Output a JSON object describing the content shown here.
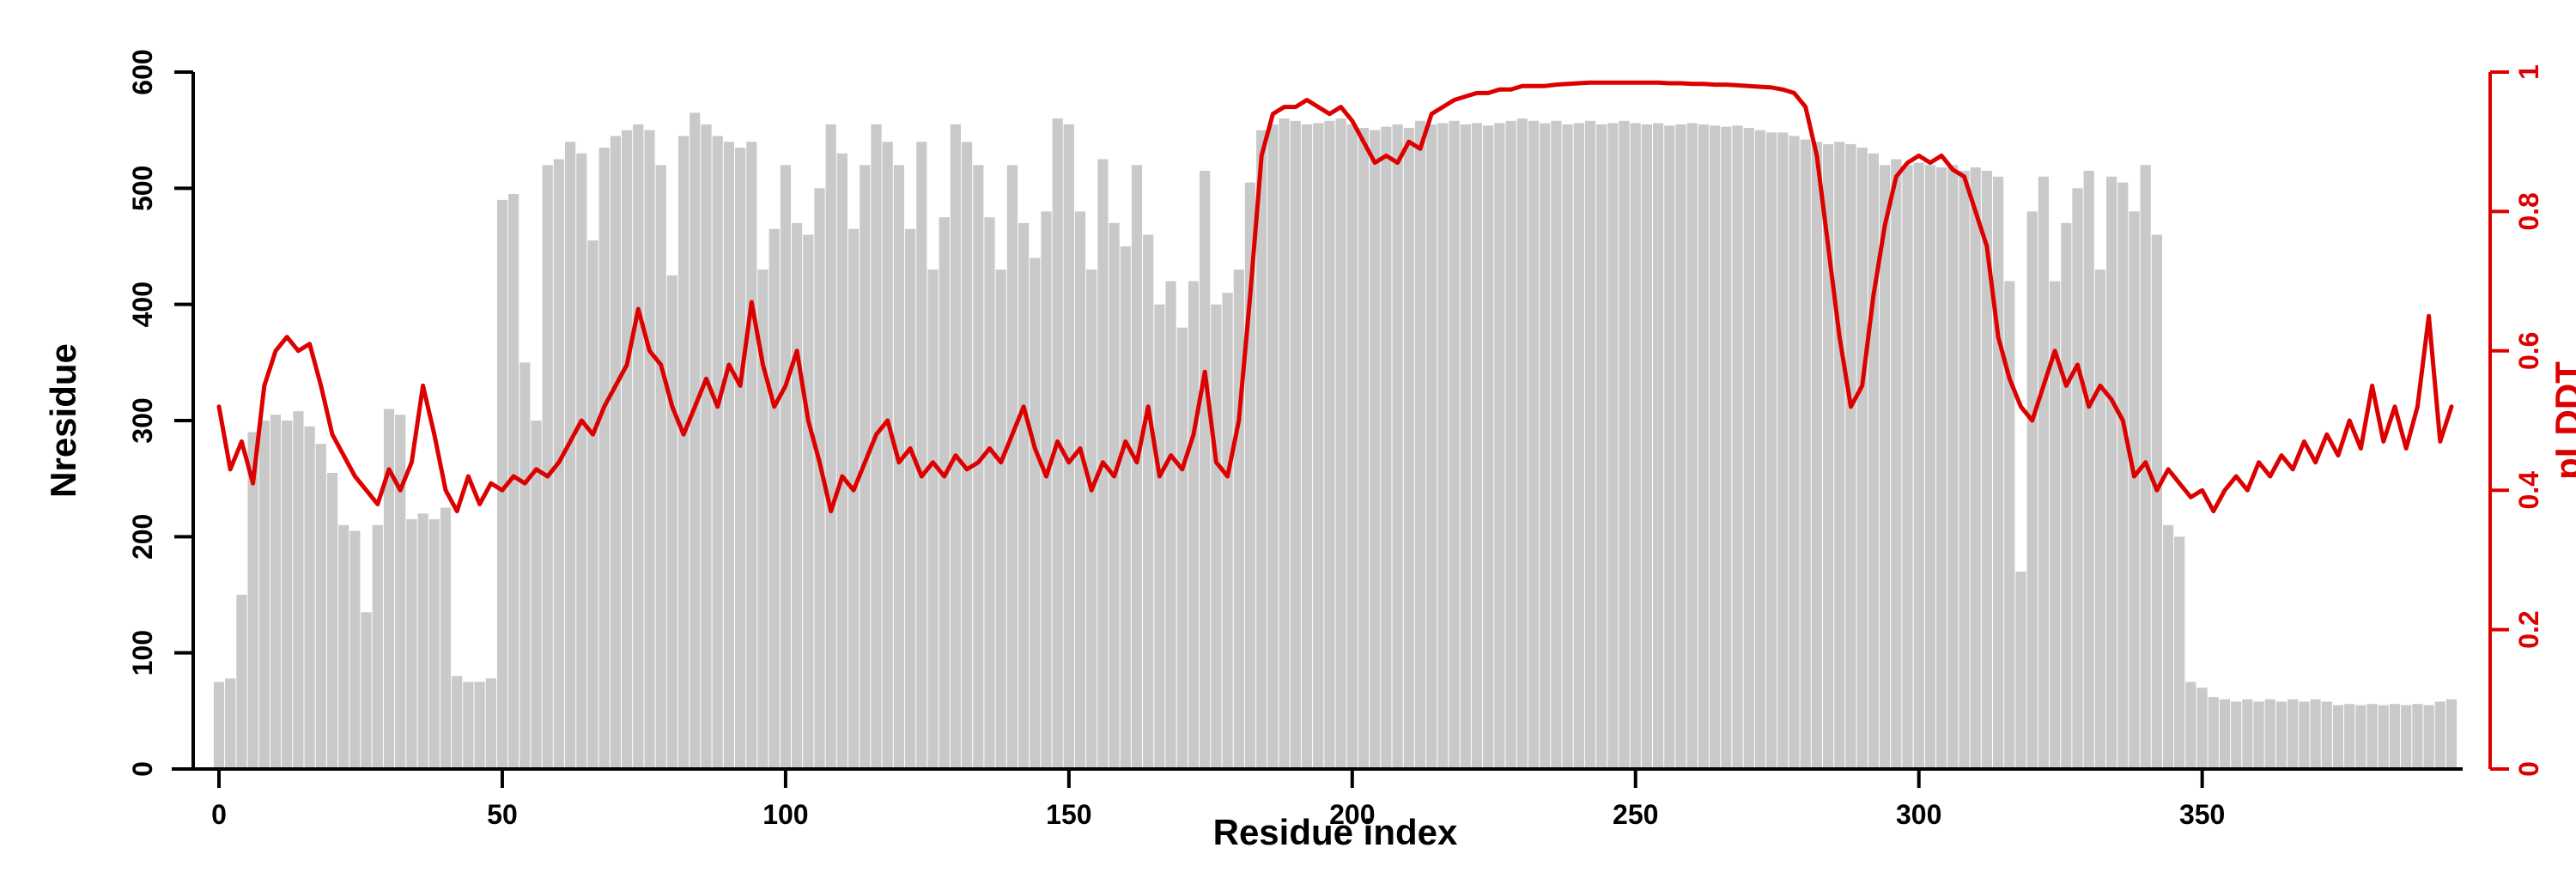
{
  "page": {
    "background": "#ffffff"
  },
  "chart_data": {
    "type": "bar",
    "subtype": "dual-axis-bar-and-line",
    "title": "",
    "xlabel": "Residue index",
    "ylabel_left": "Nresidue",
    "ylabel_right": "pLDDT",
    "xlim": [
      0,
      395
    ],
    "ylim_left": [
      0,
      600
    ],
    "ylim_right": [
      0,
      1
    ],
    "x_ticks": [
      0,
      50,
      100,
      150,
      200,
      250,
      300,
      350
    ],
    "y_ticks_left": [
      0,
      100,
      200,
      300,
      400,
      500,
      600
    ],
    "y_ticks_right": [
      0,
      0.2,
      0.4,
      0.6,
      0.8,
      1
    ],
    "x_start": 0,
    "x_step": 2,
    "grid": false,
    "legend": false,
    "colors": {
      "bar": "#c9c9c9",
      "line": "#dc0000",
      "axis": "#000000",
      "right_axis": "#dc0000"
    },
    "series": [
      {
        "name": "Nresidue",
        "type": "bar",
        "axis": "left",
        "values": [
          75,
          78,
          150,
          290,
          300,
          305,
          300,
          308,
          295,
          280,
          255,
          210,
          205,
          135,
          210,
          310,
          305,
          215,
          220,
          215,
          225,
          80,
          75,
          75,
          78,
          490,
          495,
          350,
          300,
          520,
          525,
          540,
          530,
          455,
          535,
          545,
          550,
          555,
          550,
          520,
          425,
          545,
          565,
          555,
          545,
          540,
          535,
          540,
          430,
          465,
          520,
          470,
          460,
          500,
          555,
          530,
          465,
          520,
          555,
          540,
          520,
          465,
          540,
          430,
          475,
          555,
          540,
          520,
          475,
          430,
          520,
          470,
          440,
          480,
          560,
          555,
          480,
          430,
          525,
          470,
          450,
          520,
          460,
          400,
          420,
          380,
          420,
          515,
          400,
          410,
          430,
          505,
          550,
          555,
          560,
          558,
          555,
          556,
          558,
          560,
          555,
          552,
          550,
          553,
          555,
          552,
          558,
          555,
          556,
          558,
          555,
          556,
          554,
          556,
          558,
          560,
          558,
          556,
          558,
          555,
          556,
          558,
          555,
          556,
          558,
          556,
          555,
          556,
          554,
          555,
          556,
          555,
          554,
          553,
          554,
          552,
          550,
          548,
          548,
          545,
          542,
          540,
          538,
          540,
          538,
          535,
          530,
          520,
          525,
          520,
          522,
          520,
          518,
          520,
          515,
          518,
          515,
          510,
          420,
          170,
          480,
          510,
          420,
          470,
          500,
          515,
          430,
          510,
          505,
          480,
          520,
          460,
          210,
          200,
          75,
          70,
          62,
          60,
          58,
          60,
          58,
          60,
          58,
          60,
          58,
          60,
          58,
          55,
          56,
          55,
          56,
          55,
          56,
          55,
          56,
          55,
          58,
          60
        ]
      },
      {
        "name": "pLDDT",
        "type": "line",
        "axis": "right",
        "values": [
          0.52,
          0.43,
          0.47,
          0.41,
          0.55,
          0.6,
          0.62,
          0.6,
          0.61,
          0.55,
          0.48,
          0.45,
          0.42,
          0.4,
          0.38,
          0.43,
          0.4,
          0.44,
          0.55,
          0.48,
          0.4,
          0.37,
          0.42,
          0.38,
          0.41,
          0.4,
          0.42,
          0.41,
          0.43,
          0.42,
          0.44,
          0.47,
          0.5,
          0.48,
          0.52,
          0.55,
          0.58,
          0.66,
          0.6,
          0.58,
          0.52,
          0.48,
          0.52,
          0.56,
          0.52,
          0.58,
          0.55,
          0.67,
          0.58,
          0.52,
          0.55,
          0.6,
          0.5,
          0.44,
          0.37,
          0.42,
          0.4,
          0.44,
          0.48,
          0.5,
          0.44,
          0.46,
          0.42,
          0.44,
          0.42,
          0.45,
          0.43,
          0.44,
          0.46,
          0.44,
          0.48,
          0.52,
          0.46,
          0.42,
          0.47,
          0.44,
          0.46,
          0.4,
          0.44,
          0.42,
          0.47,
          0.44,
          0.52,
          0.42,
          0.45,
          0.43,
          0.48,
          0.57,
          0.44,
          0.42,
          0.5,
          0.68,
          0.88,
          0.94,
          0.95,
          0.95,
          0.96,
          0.95,
          0.94,
          0.95,
          0.93,
          0.9,
          0.87,
          0.88,
          0.87,
          0.9,
          0.89,
          0.94,
          0.95,
          0.96,
          0.965,
          0.97,
          0.97,
          0.975,
          0.975,
          0.98,
          0.98,
          0.98,
          0.982,
          0.983,
          0.984,
          0.985,
          0.985,
          0.985,
          0.985,
          0.985,
          0.985,
          0.985,
          0.984,
          0.984,
          0.983,
          0.983,
          0.982,
          0.982,
          0.981,
          0.98,
          0.979,
          0.978,
          0.975,
          0.97,
          0.95,
          0.88,
          0.75,
          0.62,
          0.52,
          0.55,
          0.68,
          0.78,
          0.85,
          0.87,
          0.88,
          0.87,
          0.88,
          0.86,
          0.85,
          0.8,
          0.75,
          0.62,
          0.56,
          0.52,
          0.5,
          0.55,
          0.6,
          0.55,
          0.58,
          0.52,
          0.55,
          0.53,
          0.5,
          0.42,
          0.44,
          0.4,
          0.43,
          0.41,
          0.39,
          0.4,
          0.37,
          0.4,
          0.42,
          0.4,
          0.44,
          0.42,
          0.45,
          0.43,
          0.47,
          0.44,
          0.48,
          0.45,
          0.5,
          0.46,
          0.55,
          0.47,
          0.52,
          0.46,
          0.52,
          0.65,
          0.47,
          0.52
        ]
      }
    ]
  }
}
